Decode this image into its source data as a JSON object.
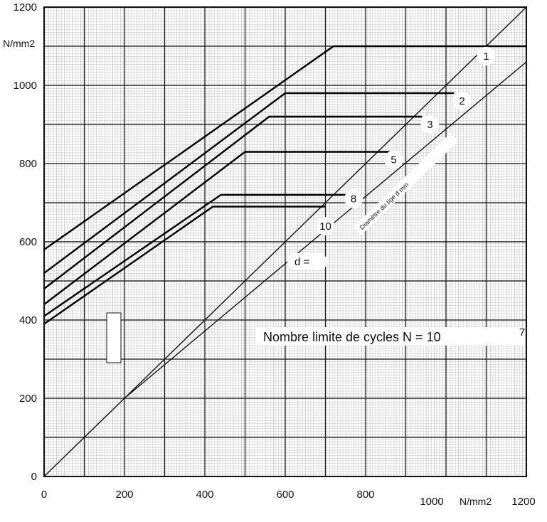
{
  "chart_data": {
    "type": "line",
    "title": "",
    "xlabel": "",
    "ylabel": "",
    "x_unit": "N/mm2",
    "y_unit": "N/mm2",
    "xlim": [
      0,
      1200
    ],
    "ylim": [
      0,
      1200
    ],
    "x_ticks": [
      "0",
      "200",
      "400",
      "600",
      "800",
      "1000",
      "1200"
    ],
    "y_ticks": [
      "0",
      "200",
      "400",
      "600",
      "800",
      "1000",
      "1200"
    ],
    "grid": true,
    "diagonal": {
      "x": [
        0,
        1200
      ],
      "y": [
        0,
        1200
      ]
    },
    "series": [
      {
        "name": "1",
        "x": [
          0,
          720,
          1200
        ],
        "y": [
          580,
          1100,
          1100
        ],
        "label_at": [
          1100,
          1075
        ]
      },
      {
        "name": "2",
        "x": [
          0,
          600,
          1020
        ],
        "y": [
          520,
          980,
          980
        ],
        "label_at": [
          1040,
          960
        ]
      },
      {
        "name": "3",
        "x": [
          0,
          560,
          940
        ],
        "y": [
          480,
          920,
          920
        ],
        "label_at": [
          960,
          900
        ]
      },
      {
        "name": "5",
        "x": [
          0,
          500,
          860
        ],
        "y": [
          440,
          830,
          830
        ],
        "label_at": [
          870,
          810
        ]
      },
      {
        "name": "8",
        "x": [
          0,
          440,
          760
        ],
        "y": [
          410,
          720,
          720
        ],
        "label_at": [
          770,
          710
        ]
      },
      {
        "name": "10",
        "x": [
          0,
          420,
          700
        ],
        "y": [
          390,
          690,
          690
        ],
        "label_at": [
          700,
          640
        ]
      }
    ],
    "inner_series": [
      {
        "x": [
          200,
          1200
        ],
        "y": [
          200,
          1060
        ]
      }
    ],
    "annotations": {
      "d_label": "d =",
      "cycles_note": "Nombre limite de cycles N = 10",
      "cycles_exponent": "7",
      "diag_note": "Diamètre du tige d mm"
    }
  }
}
